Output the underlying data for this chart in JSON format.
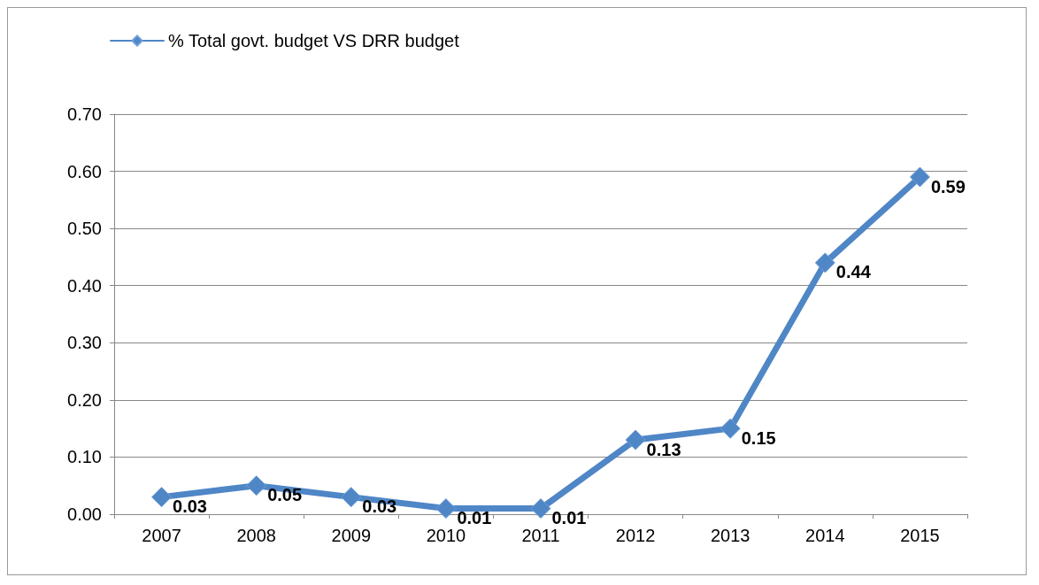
{
  "chart_data": {
    "type": "line",
    "categories": [
      "2007",
      "2008",
      "2009",
      "2010",
      "2011",
      "2012",
      "2013",
      "2014",
      "2015"
    ],
    "series": [
      {
        "name": "% Total govt. budget VS DRR budget",
        "color": "#4f86c6",
        "values": [
          0.03,
          0.05,
          0.03,
          0.01,
          0.01,
          0.13,
          0.15,
          0.44,
          0.59
        ]
      }
    ],
    "ylim": [
      0,
      0.7
    ],
    "yticks": [
      {
        "value": 0,
        "label": "0.00"
      },
      {
        "value": 0.1,
        "label": "0.10"
      },
      {
        "value": 0.2,
        "label": "0.20"
      },
      {
        "value": 0.3,
        "label": "0.30"
      },
      {
        "value": 0.4,
        "label": "0.40"
      },
      {
        "value": 0.5,
        "label": "0.50"
      },
      {
        "value": 0.6,
        "label": "0.60"
      },
      {
        "value": 0.7,
        "label": "0.70"
      }
    ],
    "grid": "y",
    "legend": "top left",
    "marker": "diamond",
    "line_style": "solid",
    "data_labels": true
  }
}
